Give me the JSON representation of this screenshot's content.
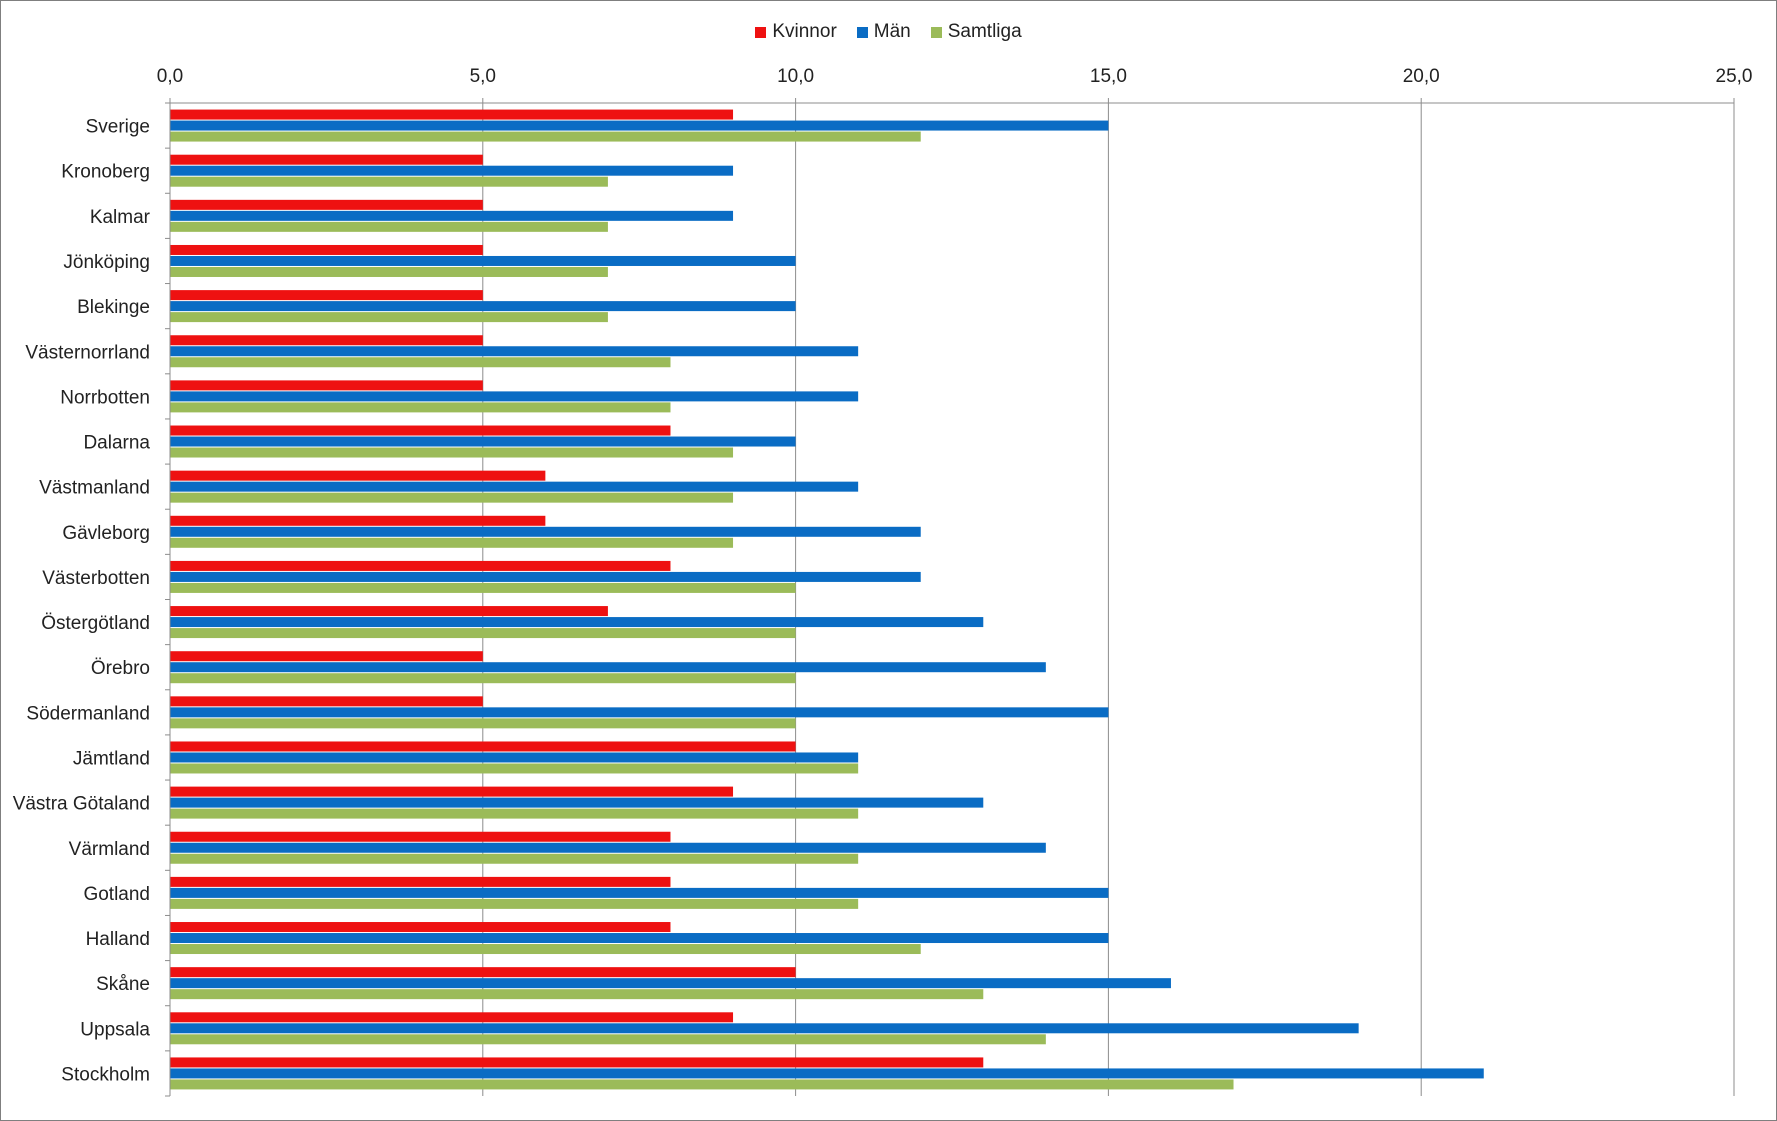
{
  "chart_data": {
    "type": "bar",
    "orientation": "horizontal",
    "categories": [
      "Sverige",
      "Kronoberg",
      "Kalmar",
      "Jönköping",
      "Blekinge",
      "Västernorrland",
      "Norrbotten",
      "Dalarna",
      "Västmanland",
      "Gävleborg",
      "Västerbotten",
      "Östergötland",
      "Örebro",
      "Södermanland",
      "Jämtland",
      "Västra Götaland",
      "Värmland",
      "Gotland",
      "Halland",
      "Skåne",
      "Uppsala",
      "Stockholm"
    ],
    "series": [
      {
        "name": "Kvinnor",
        "color": "#ee1111",
        "values": [
          9,
          5,
          5,
          5,
          5,
          5,
          5,
          8,
          6,
          6,
          8,
          7,
          5,
          5,
          10,
          9,
          8,
          8,
          8,
          10,
          9,
          13
        ]
      },
      {
        "name": "Män",
        "color": "#0a6cc4",
        "values": [
          15,
          9,
          9,
          10,
          10,
          11,
          11,
          10,
          11,
          12,
          12,
          13,
          14,
          15,
          11,
          13,
          14,
          15,
          15,
          16,
          19,
          21
        ]
      },
      {
        "name": "Samtliga",
        "color": "#9bbb59",
        "values": [
          12,
          7,
          7,
          7,
          7,
          8,
          8,
          9,
          9,
          9,
          10,
          10,
          10,
          10,
          11,
          11,
          11,
          11,
          12,
          13,
          14,
          17
        ]
      }
    ],
    "xlim": [
      0,
      25
    ],
    "ticks": [
      "0,0",
      "5,0",
      "10,0",
      "15,0",
      "20,0",
      "25,0"
    ],
    "tick_values": [
      0,
      5,
      10,
      15,
      20,
      25
    ],
    "axis_position": "top",
    "grid": "vertical",
    "legend_position": "top-center"
  }
}
